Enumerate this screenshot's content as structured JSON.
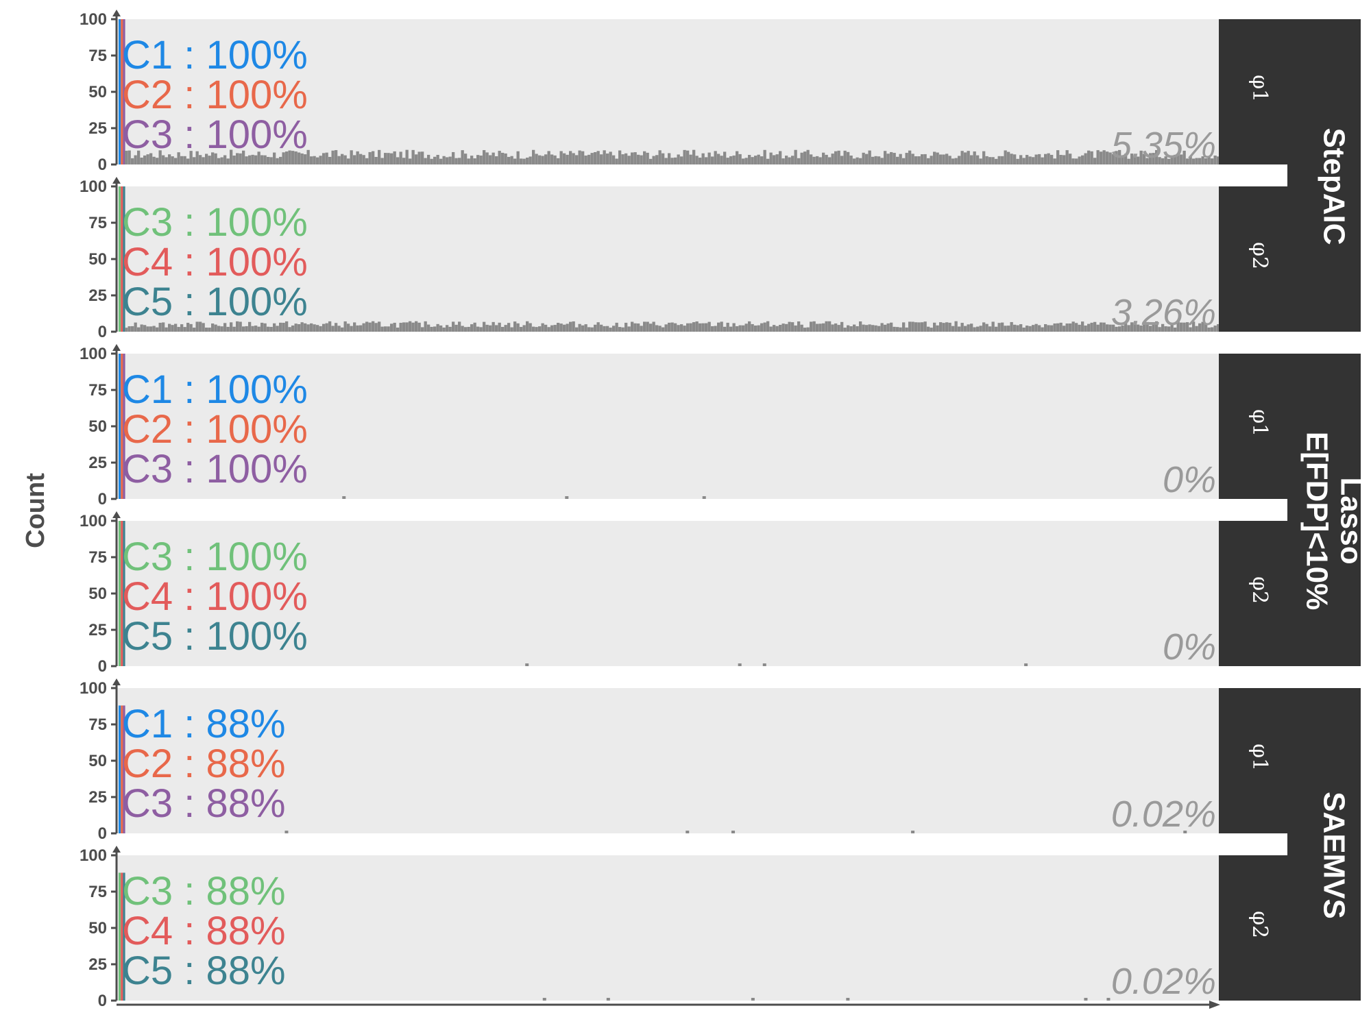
{
  "chart_data": {
    "type": "bar",
    "ylabel": "Count",
    "ylim": [
      0,
      100
    ],
    "yticks": [
      "0",
      "25",
      "50",
      "75",
      "100"
    ],
    "colors": {
      "C1": "#1E88E5",
      "C2": "#E8684A",
      "C3_phi1": "#8E5EA2",
      "C3_phi2": "#70C17A",
      "C4": "#E25B5B",
      "C5": "#3D8390",
      "noise": "#8a8a8a",
      "panel_bg": "#ebebeb",
      "strip_bg": "#333333"
    },
    "methods": [
      {
        "name": "StepAIC",
        "panels": [
          {
            "parameter": "φ1",
            "selected": [
              {
                "label": "C1",
                "sep": " : ",
                "value": "100%",
                "color": "#1E88E5"
              },
              {
                "label": "C2",
                "sep": " : ",
                "value": "100%",
                "color": "#E8684A"
              },
              {
                "label": "C3",
                "sep": " : ",
                "value": "100%",
                "color": "#8E5EA2"
              }
            ],
            "false_rate": "5.35%",
            "noise_level": 7
          },
          {
            "parameter": "φ2",
            "selected": [
              {
                "label": "C3",
                "sep": " : ",
                "value": "100%",
                "color": "#70C17A"
              },
              {
                "label": "C4",
                "sep": " : ",
                "value": "100%",
                "color": "#E25B5B"
              },
              {
                "label": "C5",
                "sep": " : ",
                "value": "100%",
                "color": "#3D8390"
              }
            ],
            "false_rate": "3.26%",
            "noise_level": 5
          }
        ]
      },
      {
        "name": "Lasso\nE[FDP]<10%",
        "panels": [
          {
            "parameter": "φ1",
            "selected": [
              {
                "label": "C1",
                "sep": " : ",
                "value": "100%",
                "color": "#1E88E5"
              },
              {
                "label": "C2",
                "sep": " : ",
                "value": "100%",
                "color": "#E8684A"
              },
              {
                "label": "C3",
                "sep": " : ",
                "value": "100%",
                "color": "#8E5EA2"
              }
            ],
            "false_rate": "0%",
            "noise_level": 0
          },
          {
            "parameter": "φ2",
            "selected": [
              {
                "label": "C3",
                "sep": " : ",
                "value": "100%",
                "color": "#70C17A"
              },
              {
                "label": "C4",
                "sep": " : ",
                "value": "100%",
                "color": "#E25B5B"
              },
              {
                "label": "C5",
                "sep": " : ",
                "value": "100%",
                "color": "#3D8390"
              }
            ],
            "false_rate": "0%",
            "noise_level": 0
          }
        ]
      },
      {
        "name": "SAEMVS",
        "panels": [
          {
            "parameter": "φ1",
            "selected": [
              {
                "label": "C1",
                "sep": " : ",
                "value": "88%",
                "color": "#1E88E5"
              },
              {
                "label": "C2",
                "sep": " : ",
                "value": "88%",
                "color": "#E8684A"
              },
              {
                "label": "C3",
                "sep": " : ",
                "value": "88%",
                "color": "#8E5EA2"
              }
            ],
            "false_rate": "0.02%",
            "noise_level": 0
          },
          {
            "parameter": "φ2",
            "selected": [
              {
                "label": "C3",
                "sep": " : ",
                "value": "88%",
                "color": "#70C17A"
              },
              {
                "label": "C4",
                "sep": " : ",
                "value": "88%",
                "color": "#E25B5B"
              },
              {
                "label": "C5",
                "sep": " : ",
                "value": "88%",
                "color": "#3D8390"
              }
            ],
            "false_rate": "0.02%",
            "noise_level": 0
          }
        ]
      }
    ]
  }
}
